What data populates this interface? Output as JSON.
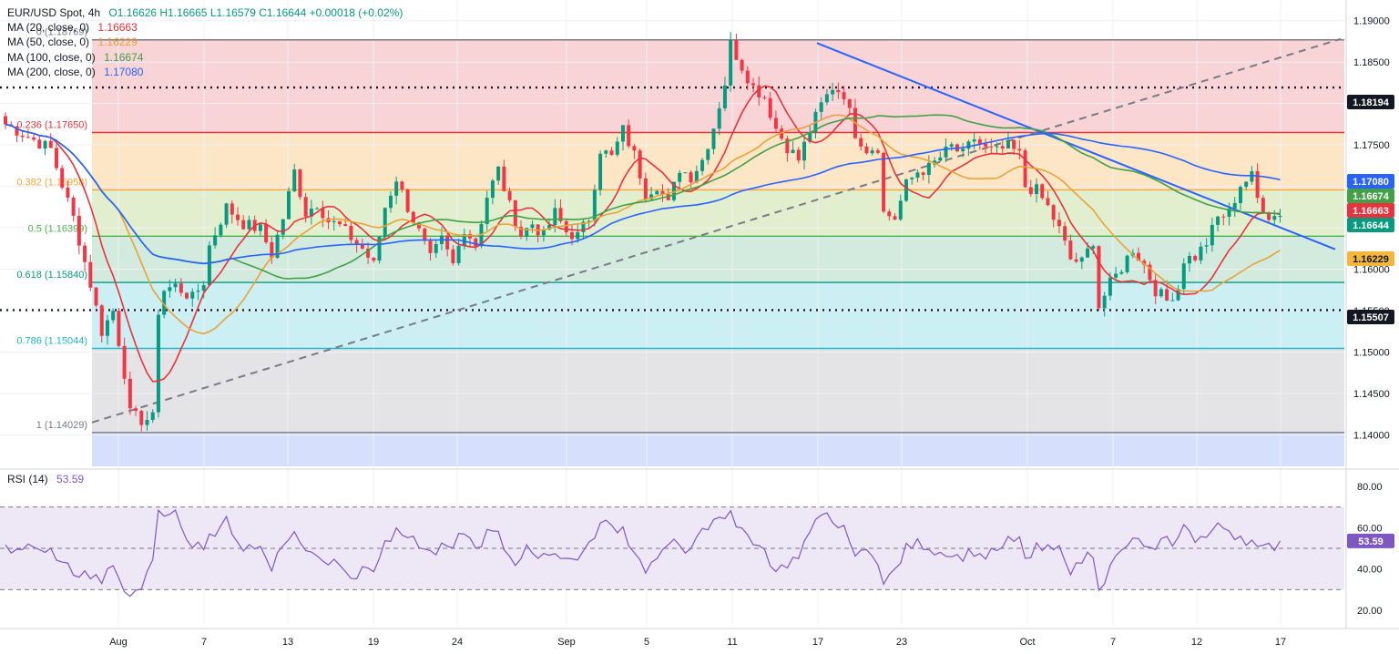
{
  "header": {
    "symbol": "EUR/USD Spot, 4h",
    "ohlc": "O1.16626  H1.16665  L1.16579  C1.16644  +0.00018 (+0.02%)",
    "ma_rows": [
      {
        "label": "MA (20, close, 0)",
        "value": "1.16663",
        "color": "#e8323c"
      },
      {
        "label": "MA (50, close, 0)",
        "value": "1.16229",
        "color": "#e9a23b"
      },
      {
        "label": "MA (100, close, 0)",
        "value": "1.16674",
        "color": "#43a047"
      },
      {
        "label": "MA (200, close, 0)",
        "value": "1.17080",
        "color": "#2962ff"
      }
    ]
  },
  "rsi": {
    "label": "RSI (14)",
    "value": "53.59"
  },
  "chart_data": {
    "type": "candlestick",
    "x_tick_labels": [
      "Aug",
      "7",
      "13",
      "19",
      "24",
      "Sep",
      "5",
      "11",
      "17",
      "23",
      "Oct",
      "7",
      "12",
      "17"
    ],
    "price_axis": {
      "ylim": [
        1.1362,
        1.1925
      ],
      "ticks": [
        "1.19000",
        "1.18500",
        "1.18000",
        "1.17500",
        "1.17000",
        "1.16500",
        "1.16000",
        "1.15500",
        "1.15000",
        "1.14500",
        "1.14000"
      ]
    },
    "price_badges": [
      {
        "label": "1.18194",
        "kind": "dotted-level"
      },
      {
        "label": "1.17080",
        "kind": "ma200"
      },
      {
        "label": "1.16674",
        "kind": "ma100"
      },
      {
        "label": "1.16663",
        "kind": "ma20"
      },
      {
        "label": "1.16644",
        "kind": "last"
      },
      {
        "label": "1.16229",
        "kind": "ma50"
      },
      {
        "label": "1.15507",
        "kind": "dotted-level"
      }
    ],
    "fibonacci": [
      {
        "ratio": "0",
        "price": 1.18769,
        "label": "0 (1.18769)"
      },
      {
        "ratio": "0.236",
        "price": 1.1765,
        "label": "0.236 (1.17650)"
      },
      {
        "ratio": "0.382",
        "price": 1.16958,
        "label": "0.382 (1.16958)"
      },
      {
        "ratio": "0.5",
        "price": 1.16399,
        "label": "0.5 (1.16399)"
      },
      {
        "ratio": "0.618",
        "price": 1.1584,
        "label": "0.618 (1.15840)"
      },
      {
        "ratio": "0.786",
        "price": 1.15044,
        "label": "0.786 (1.15044)"
      },
      {
        "ratio": "1",
        "price": 1.14029,
        "label": "1 (1.14029)"
      }
    ],
    "horizontal_levels": [
      1.18194,
      1.15507
    ],
    "trend_lines": [
      {
        "style": "solid",
        "from": {
          "label": "Sep 16",
          "price": 1.1873
        },
        "to": {
          "label": "Oct 18",
          "price": 1.1624
        }
      },
      {
        "style": "dashed",
        "from": {
          "label": "Aug 1",
          "price": 1.1415
        },
        "to": {
          "label": "Oct 18",
          "price": 1.1878
        }
      }
    ],
    "last_price": 1.16644,
    "moving_averages": [
      {
        "name": "MA 20",
        "period": 20,
        "last": 1.16663,
        "color": "#e8323c"
      },
      {
        "name": "MA 50",
        "period": 50,
        "last": 1.16229,
        "color": "#e9a23b"
      },
      {
        "name": "MA 100",
        "period": 100,
        "last": 1.16674,
        "color": "#43a047"
      },
      {
        "name": "MA 200",
        "period": 200,
        "last": 1.1708,
        "color": "#2962ff"
      }
    ],
    "close_path": [
      [
        0,
        1.1775
      ],
      [
        4,
        1.176
      ],
      [
        8,
        1.1745
      ],
      [
        10,
        1.1702
      ],
      [
        12,
        1.1662
      ],
      [
        15,
        1.1582
      ],
      [
        17,
        1.1525
      ],
      [
        19,
        1.155
      ],
      [
        21,
        1.1475
      ],
      [
        22,
        1.1425
      ],
      [
        24,
        1.1418
      ],
      [
        26,
        1.142
      ],
      [
        27,
        1.155
      ],
      [
        28,
        1.1575
      ],
      [
        30,
        1.158
      ],
      [
        33,
        1.1565
      ],
      [
        35,
        1.1585
      ],
      [
        36,
        1.1628
      ],
      [
        39,
        1.1675
      ],
      [
        42,
        1.1655
      ],
      [
        45,
        1.1648
      ],
      [
        47,
        1.1618
      ],
      [
        49,
        1.1662
      ],
      [
        51,
        1.1718
      ],
      [
        53,
        1.1668
      ],
      [
        55,
        1.168
      ],
      [
        57,
        1.1658
      ],
      [
        59,
        1.1652
      ],
      [
        61,
        1.1638
      ],
      [
        63,
        1.1625
      ],
      [
        65,
        1.1605
      ],
      [
        67,
        1.1675
      ],
      [
        69,
        1.171
      ],
      [
        71,
        1.1675
      ],
      [
        73,
        1.1645
      ],
      [
        75,
        1.1612
      ],
      [
        77,
        1.1635
      ],
      [
        79,
        1.1605
      ],
      [
        81,
        1.165
      ],
      [
        83,
        1.163
      ],
      [
        85,
        1.1688
      ],
      [
        87,
        1.172
      ],
      [
        89,
        1.1676
      ],
      [
        91,
        1.1642
      ],
      [
        93,
        1.1655
      ],
      [
        95,
        1.164
      ],
      [
        97,
        1.1668
      ],
      [
        99,
        1.1645
      ],
      [
        101,
        1.164
      ],
      [
        103,
        1.1662
      ],
      [
        105,
        1.1745
      ],
      [
        107,
        1.1735
      ],
      [
        109,
        1.1768
      ],
      [
        111,
        1.1738
      ],
      [
        113,
        1.1692
      ],
      [
        115,
        1.1702
      ],
      [
        117,
        1.1678
      ],
      [
        119,
        1.1722
      ],
      [
        121,
        1.1712
      ],
      [
        123,
        1.1732
      ],
      [
        125,
        1.1772
      ],
      [
        127,
        1.1825
      ],
      [
        128,
        1.1872
      ],
      [
        130,
        1.1845
      ],
      [
        132,
        1.182
      ],
      [
        134,
        1.1808
      ],
      [
        136,
        1.177
      ],
      [
        138,
        1.1748
      ],
      [
        140,
        1.1732
      ],
      [
        142,
        1.1768
      ],
      [
        144,
        1.1798
      ],
      [
        146,
        1.182
      ],
      [
        148,
        1.1812
      ],
      [
        150,
        1.1765
      ],
      [
        152,
        1.1745
      ],
      [
        154,
        1.1748
      ],
      [
        155,
        1.1668
      ],
      [
        157,
        1.1662
      ],
      [
        159,
        1.1702
      ],
      [
        161,
        1.1718
      ],
      [
        163,
        1.1722
      ],
      [
        165,
        1.1735
      ],
      [
        167,
        1.1748
      ],
      [
        169,
        1.1738
      ],
      [
        171,
        1.1758
      ],
      [
        173,
        1.1745
      ],
      [
        175,
        1.1742
      ],
      [
        177,
        1.1748
      ],
      [
        179,
        1.1738
      ],
      [
        180,
        1.17
      ],
      [
        182,
        1.1695
      ],
      [
        184,
        1.1675
      ],
      [
        186,
        1.1648
      ],
      [
        188,
        1.1612
      ],
      [
        190,
        1.1608
      ],
      [
        192,
        1.1635
      ],
      [
        193,
        1.1555
      ],
      [
        195,
        1.1582
      ],
      [
        197,
        1.1602
      ],
      [
        199,
        1.1625
      ],
      [
        201,
        1.1605
      ],
      [
        203,
        1.1575
      ],
      [
        205,
        1.1562
      ],
      [
        207,
        1.1578
      ],
      [
        208,
        1.1612
      ],
      [
        210,
        1.1615
      ],
      [
        212,
        1.1632
      ],
      [
        214,
        1.1662
      ],
      [
        216,
        1.1668
      ],
      [
        218,
        1.1702
      ],
      [
        220,
        1.1712
      ],
      [
        221,
        1.1685
      ],
      [
        223,
        1.1665
      ],
      [
        225,
        1.1664
      ]
    ],
    "rsi_panel": {
      "ylim": [
        13,
        87
      ],
      "ticks": [
        "80.00",
        "60.00",
        "40.00",
        "20.00"
      ],
      "band": [
        30,
        70
      ],
      "midline": 50,
      "last": 53.59
    }
  }
}
